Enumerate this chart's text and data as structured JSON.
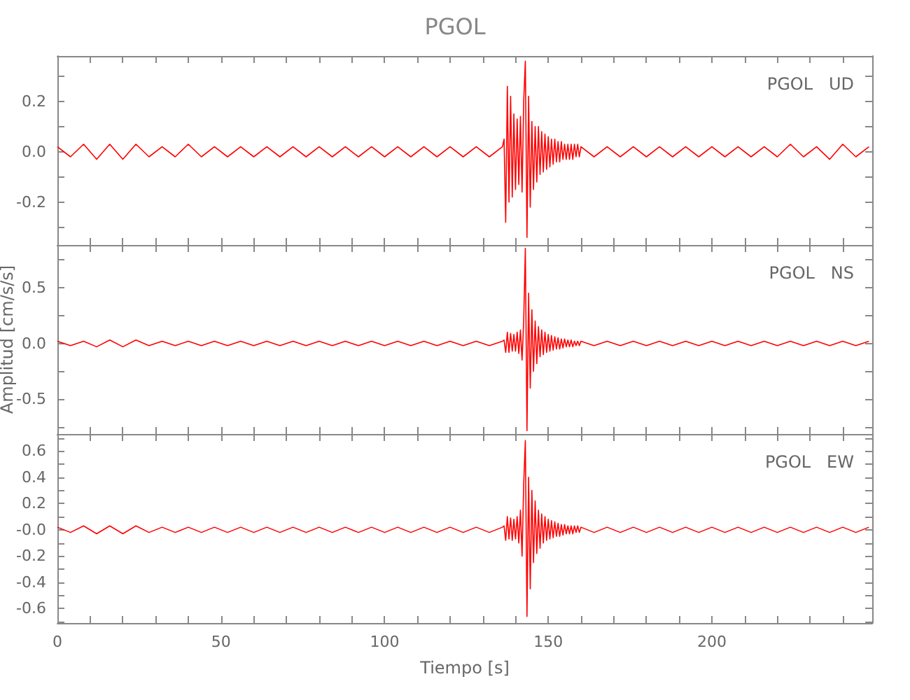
{
  "chart_data": [
    {
      "type": "line",
      "title": "PGOL",
      "annotations": [
        "PGOL   UD"
      ],
      "tick_labels": "y",
      "xlim": [
        0,
        249
      ],
      "xticks": [
        0,
        {
          "value": 10,
          "label": null
        },
        {
          "value": 20,
          "label": null
        },
        {
          "value": 30,
          "label": null
        },
        {
          "value": 40,
          "label": null
        },
        50,
        {
          "value": 60,
          "label": null
        },
        {
          "value": 70,
          "label": null
        },
        {
          "value": 80,
          "label": null
        },
        {
          "value": 90,
          "label": null
        },
        100,
        {
          "value": 110,
          "label": null
        },
        {
          "value": 120,
          "label": null
        },
        {
          "value": 130,
          "label": null
        },
        {
          "value": 140,
          "label": null
        },
        150,
        {
          "value": 160,
          "label": null
        },
        {
          "value": 170,
          "label": null
        },
        {
          "value": 180,
          "label": null
        },
        {
          "value": 190,
          "label": null
        },
        200,
        {
          "value": 210,
          "label": null
        },
        {
          "value": 220,
          "label": null
        },
        {
          "value": 230,
          "label": null
        },
        {
          "value": 240,
          "label": null
        }
      ],
      "ylim": [
        -0.37,
        0.38
      ],
      "yticks": [
        {
          "value": -0.3,
          "label": null
        },
        -0.2,
        {
          "value": -0.1,
          "label": null
        },
        {
          "value": 0,
          "label": "0.0"
        },
        {
          "value": 0.1,
          "label": null
        },
        0.2,
        {
          "value": 0.3,
          "label": null
        }
      ],
      "x": [
        0,
        4,
        8,
        12,
        16,
        20,
        24,
        28,
        32,
        36,
        40,
        44,
        48,
        52,
        56,
        60,
        64,
        68,
        72,
        76,
        80,
        84,
        88,
        92,
        96,
        100,
        104,
        108,
        112,
        116,
        120,
        124,
        128,
        132,
        136,
        136.5,
        137,
        137.5,
        138,
        138.5,
        139,
        139.5,
        140,
        140.5,
        141,
        141.5,
        142,
        142.5,
        143,
        143.5,
        144,
        144.5,
        145,
        145.5,
        146,
        146.5,
        147,
        147.5,
        148,
        148.5,
        149,
        149.5,
        150,
        150.5,
        151,
        151.5,
        152,
        152.5,
        153,
        153.5,
        154,
        154.5,
        155,
        155.5,
        156,
        156.5,
        157,
        157.5,
        158,
        158.5,
        159,
        159.5,
        160,
        164,
        168,
        172,
        176,
        180,
        184,
        188,
        192,
        196,
        200,
        204,
        208,
        212,
        216,
        220,
        224,
        228,
        232,
        236,
        240,
        244,
        248
      ],
      "series": [
        {
          "color": "#ff0000",
          "values": [
            0.02,
            -0.02,
            0.03,
            -0.03,
            0.03,
            -0.03,
            0.03,
            -0.02,
            0.02,
            -0.02,
            0.03,
            -0.02,
            0.02,
            -0.02,
            0.02,
            -0.02,
            0.02,
            -0.02,
            0.02,
            -0.02,
            0.02,
            -0.02,
            0.02,
            -0.02,
            0.02,
            -0.02,
            0.02,
            -0.02,
            0.02,
            -0.02,
            0.02,
            -0.02,
            0.02,
            -0.02,
            0.02,
            0.05,
            -0.28,
            0.26,
            -0.2,
            0.22,
            -0.18,
            0.15,
            -0.15,
            0.13,
            -0.13,
            0.14,
            -0.16,
            0.2,
            0.36,
            -0.34,
            0.22,
            -0.22,
            0.12,
            -0.15,
            0.1,
            -0.12,
            0.1,
            -0.09,
            0.08,
            -0.08,
            0.07,
            -0.07,
            0.06,
            -0.06,
            0.05,
            -0.05,
            0.05,
            -0.04,
            0.04,
            -0.04,
            0.04,
            -0.03,
            0.03,
            -0.03,
            0.03,
            -0.03,
            0.03,
            -0.03,
            0.03,
            -0.02,
            0.03,
            -0.02,
            0.02,
            -0.02,
            0.02,
            -0.02,
            0.02,
            -0.02,
            0.02,
            -0.02,
            0.02,
            -0.02,
            0.02,
            -0.02,
            0.02,
            -0.02,
            0.02,
            -0.02,
            0.03,
            -0.02,
            0.02,
            -0.03,
            0.03,
            -0.02,
            0.02
          ]
        }
      ]
    },
    {
      "type": "line",
      "ylabel": "Amplitud [cm/s/s]",
      "annotations": [
        "PGOL   NS"
      ],
      "tick_labels": "y",
      "xlim": [
        0,
        249
      ],
      "xticks": [
        0,
        {
          "value": 10,
          "label": null
        },
        {
          "value": 20,
          "label": null
        },
        {
          "value": 30,
          "label": null
        },
        {
          "value": 40,
          "label": null
        },
        50,
        {
          "value": 60,
          "label": null
        },
        {
          "value": 70,
          "label": null
        },
        {
          "value": 80,
          "label": null
        },
        {
          "value": 90,
          "label": null
        },
        100,
        {
          "value": 110,
          "label": null
        },
        {
          "value": 120,
          "label": null
        },
        {
          "value": 130,
          "label": null
        },
        {
          "value": 140,
          "label": null
        },
        150,
        {
          "value": 160,
          "label": null
        },
        {
          "value": 170,
          "label": null
        },
        {
          "value": 180,
          "label": null
        },
        {
          "value": 190,
          "label": null
        },
        200,
        {
          "value": 210,
          "label": null
        },
        {
          "value": 220,
          "label": null
        },
        {
          "value": 230,
          "label": null
        },
        {
          "value": 240,
          "label": null
        }
      ],
      "ylim": [
        -0.81,
        0.88
      ],
      "yticks": [
        {
          "value": -0.75,
          "label": null
        },
        -0.5,
        {
          "value": -0.25,
          "label": null
        },
        {
          "value": 0,
          "label": "0.0"
        },
        {
          "value": 0.25,
          "label": null
        },
        0.5,
        {
          "value": 0.75,
          "label": null
        }
      ],
      "x": [
        0,
        4,
        8,
        12,
        16,
        20,
        24,
        28,
        32,
        36,
        40,
        44,
        48,
        52,
        56,
        60,
        64,
        68,
        72,
        76,
        80,
        84,
        88,
        92,
        96,
        100,
        104,
        108,
        112,
        116,
        120,
        124,
        128,
        132,
        136,
        136.5,
        137,
        137.5,
        138,
        138.5,
        139,
        139.5,
        140,
        140.5,
        141,
        141.5,
        142,
        142.5,
        143,
        143.5,
        144,
        144.5,
        145,
        145.5,
        146,
        146.5,
        147,
        147.5,
        148,
        148.5,
        149,
        149.5,
        150,
        150.5,
        151,
        151.5,
        152,
        152.5,
        153,
        153.5,
        154,
        154.5,
        155,
        155.5,
        156,
        156.5,
        157,
        157.5,
        158,
        158.5,
        159,
        159.5,
        160,
        164,
        168,
        172,
        176,
        180,
        184,
        188,
        192,
        196,
        200,
        204,
        208,
        212,
        216,
        220,
        224,
        228,
        232,
        236,
        240,
        244,
        248
      ],
      "series": [
        {
          "color": "#ff0000",
          "values": [
            0.02,
            -0.02,
            0.02,
            -0.03,
            0.03,
            -0.03,
            0.03,
            -0.02,
            0.02,
            -0.02,
            0.02,
            -0.02,
            0.02,
            -0.02,
            0.02,
            -0.02,
            0.02,
            -0.02,
            0.02,
            -0.02,
            0.02,
            -0.02,
            0.02,
            -0.02,
            0.02,
            -0.02,
            0.02,
            -0.02,
            0.02,
            -0.02,
            0.02,
            -0.02,
            0.02,
            -0.02,
            0.02,
            0.03,
            -0.08,
            0.1,
            -0.08,
            0.09,
            -0.07,
            0.08,
            -0.07,
            0.1,
            -0.09,
            0.12,
            -0.15,
            0.2,
            0.85,
            -0.78,
            0.45,
            -0.4,
            0.3,
            -0.25,
            0.2,
            -0.18,
            0.15,
            -0.12,
            0.12,
            -0.1,
            0.1,
            -0.08,
            0.08,
            -0.07,
            0.07,
            -0.06,
            0.06,
            -0.05,
            0.05,
            -0.05,
            0.04,
            -0.04,
            0.04,
            -0.03,
            0.03,
            -0.03,
            0.03,
            -0.03,
            0.02,
            -0.02,
            0.02,
            -0.02,
            0.02,
            -0.02,
            0.02,
            -0.02,
            0.02,
            -0.02,
            0.02,
            -0.02,
            0.02,
            -0.02,
            0.02,
            -0.02,
            0.02,
            -0.02,
            0.02,
            -0.02,
            0.02,
            -0.02,
            0.02,
            -0.02,
            0.02,
            -0.02,
            0.02
          ]
        }
      ]
    },
    {
      "type": "line",
      "xlabel": "Tiempo [s]",
      "annotations": [
        "PGOL   EW"
      ],
      "xlim": [
        0,
        249
      ],
      "xticks": [
        0,
        {
          "value": 10,
          "label": null
        },
        {
          "value": 20,
          "label": null
        },
        {
          "value": 30,
          "label": null
        },
        {
          "value": 40,
          "label": null
        },
        50,
        {
          "value": 60,
          "label": null
        },
        {
          "value": 70,
          "label": null
        },
        {
          "value": 80,
          "label": null
        },
        {
          "value": 90,
          "label": null
        },
        100,
        {
          "value": 110,
          "label": null
        },
        {
          "value": 120,
          "label": null
        },
        {
          "value": 130,
          "label": null
        },
        {
          "value": 140,
          "label": null
        },
        150,
        {
          "value": 160,
          "label": null
        },
        {
          "value": 170,
          "label": null
        },
        {
          "value": 180,
          "label": null
        },
        {
          "value": 190,
          "label": null
        },
        200,
        {
          "value": 210,
          "label": null
        },
        {
          "value": 220,
          "label": null
        },
        {
          "value": 230,
          "label": null
        },
        {
          "value": 240,
          "label": null
        }
      ],
      "ylim": [
        -0.71,
        0.73
      ],
      "yticks": [
        {
          "value": -0.7,
          "label": null
        },
        -0.6,
        {
          "value": -0.5,
          "label": null
        },
        -0.4,
        {
          "value": -0.3,
          "label": null
        },
        -0.2,
        {
          "value": -0.1,
          "label": null
        },
        {
          "value": 0,
          "label": "-0.0"
        },
        {
          "value": 0.1,
          "label": null
        },
        0.2,
        {
          "value": 0.3,
          "label": null
        },
        0.4,
        {
          "value": 0.5,
          "label": null
        },
        0.6,
        {
          "value": 0.7,
          "label": null
        }
      ],
      "x": [
        0,
        4,
        8,
        12,
        16,
        20,
        24,
        28,
        32,
        36,
        40,
        44,
        48,
        52,
        56,
        60,
        64,
        68,
        72,
        76,
        80,
        84,
        88,
        92,
        96,
        100,
        104,
        108,
        112,
        116,
        120,
        124,
        128,
        132,
        136,
        136.5,
        137,
        137.5,
        138,
        138.5,
        139,
        139.5,
        140,
        140.5,
        141,
        141.5,
        142,
        142.5,
        143,
        143.5,
        144,
        144.5,
        145,
        145.5,
        146,
        146.5,
        147,
        147.5,
        148,
        148.5,
        149,
        149.5,
        150,
        150.5,
        151,
        151.5,
        152,
        152.5,
        153,
        153.5,
        154,
        154.5,
        155,
        155.5,
        156,
        156.5,
        157,
        157.5,
        158,
        158.5,
        159,
        159.5,
        160,
        164,
        168,
        172,
        176,
        180,
        184,
        188,
        192,
        196,
        200,
        204,
        208,
        212,
        216,
        220,
        224,
        228,
        232,
        236,
        240,
        244,
        248
      ],
      "series": [
        {
          "color": "#ff0000",
          "values": [
            0.02,
            -0.02,
            0.03,
            -0.03,
            0.03,
            -0.03,
            0.03,
            -0.02,
            0.02,
            -0.02,
            0.02,
            -0.02,
            0.02,
            -0.02,
            0.02,
            -0.02,
            0.02,
            -0.02,
            0.02,
            -0.02,
            0.02,
            -0.02,
            0.02,
            -0.02,
            0.02,
            -0.02,
            0.02,
            -0.02,
            0.02,
            -0.02,
            0.02,
            -0.02,
            0.02,
            -0.02,
            0.02,
            0.03,
            -0.08,
            0.1,
            -0.07,
            0.09,
            -0.08,
            0.08,
            -0.07,
            0.1,
            -0.1,
            0.15,
            -0.2,
            0.35,
            0.68,
            -0.66,
            0.4,
            -0.45,
            0.3,
            -0.25,
            0.22,
            -0.18,
            0.15,
            -0.14,
            0.12,
            -0.1,
            0.1,
            -0.08,
            0.08,
            -0.07,
            0.07,
            -0.06,
            0.06,
            -0.05,
            0.05,
            -0.05,
            0.04,
            -0.04,
            0.04,
            -0.03,
            0.03,
            -0.03,
            0.03,
            -0.03,
            0.03,
            -0.02,
            0.03,
            -0.02,
            0.02,
            -0.02,
            0.02,
            -0.02,
            0.02,
            -0.02,
            0.02,
            -0.02,
            0.02,
            -0.02,
            0.02,
            -0.02,
            0.02,
            -0.02,
            0.02,
            -0.02,
            0.02,
            -0.02,
            0.02,
            -0.02,
            0.02,
            -0.02,
            0.02
          ]
        }
      ]
    }
  ]
}
